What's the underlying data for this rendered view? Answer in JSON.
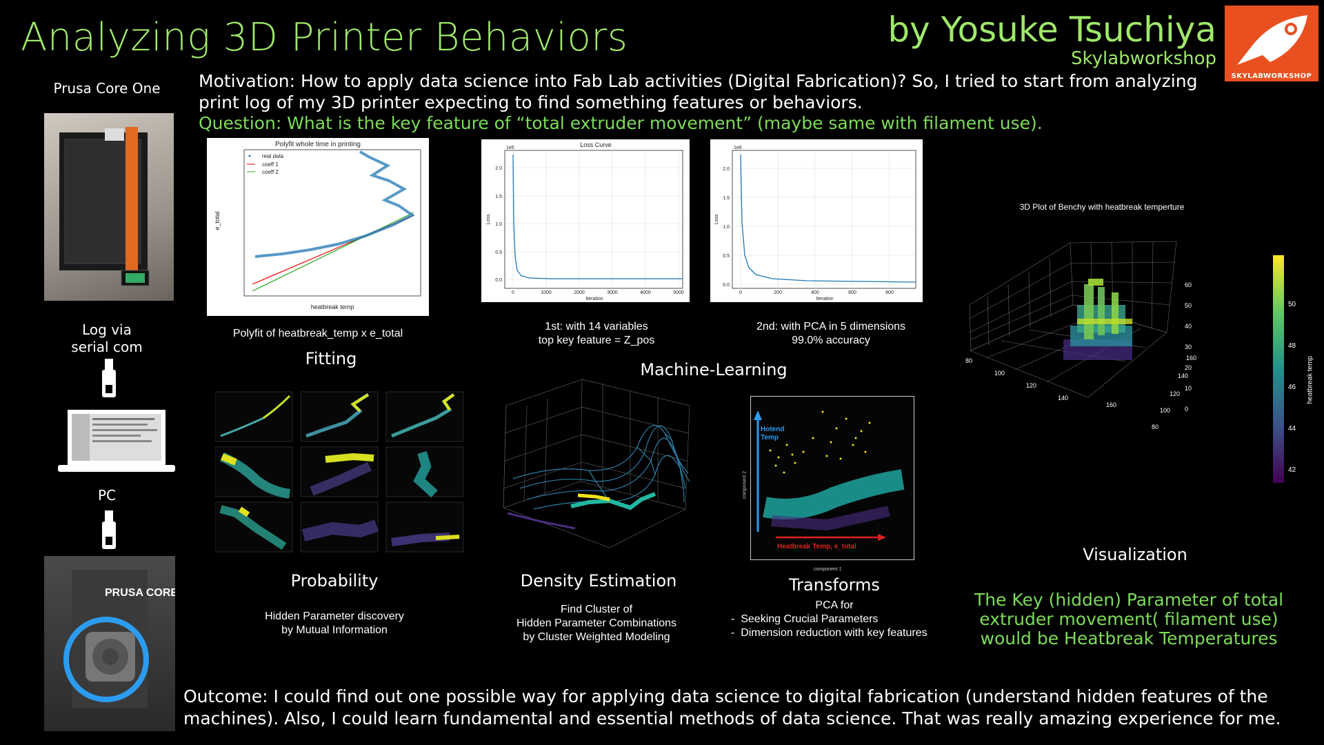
{
  "header": {
    "title": "Analyzing 3D Printer Behaviors",
    "author": "by Yosuke Tsuchiya",
    "organization": "Skylabworkshop",
    "logo_text": "SKYLABWORKSHOP"
  },
  "motivation": "Motivation: How to apply data science into Fab Lab activities (Digital Fabrication)? So, I tried to start from analyzing print log of my 3D printer expecting to find something features or behaviors.",
  "question": "Question: What is the key feature of “total extruder movement” (maybe same with filament use).",
  "sidebar": {
    "printer_label": "Prusa Core One",
    "log_label": "Log via\nserial com",
    "pc_label": "PC",
    "printer_head_text": "PRUSA CORE One"
  },
  "fitting": {
    "plot_title": "Polyfit whole time in printing",
    "legend": [
      "real data",
      "coeff 1",
      "coeff 2"
    ],
    "xlabel": "heatbreak temp",
    "ylabel": "e_total",
    "caption": "Polyfit of heatbreak_temp x e_total",
    "section": "Fitting"
  },
  "ml": {
    "section": "Machine-Learning",
    "loss1": {
      "title": "Loss Curve",
      "scale": "1e6",
      "yticks": [
        "0.0",
        "0.5",
        "1.0",
        "1.5",
        "2.0"
      ],
      "xticks": [
        "0",
        "1000",
        "2000",
        "3000",
        "4000",
        "5000"
      ],
      "xlabel": "Iteration",
      "ylabel": "Loss",
      "caption": "1st: with 14 variables\ntop key feature = Z_pos"
    },
    "loss2": {
      "scale": "1e6",
      "yticks": [
        "0.0",
        "0.5",
        "1.0",
        "1.5",
        "2.0"
      ],
      "xticks": [
        "0",
        "200",
        "400",
        "600",
        "800"
      ],
      "xlabel": "Iteration",
      "ylabel": "Loss",
      "caption": "2nd: with PCA in 5 dimensions\n99.0% accuracy"
    }
  },
  "probability": {
    "section": "Probability",
    "caption": "Hidden Parameter discovery\nby Mutual Information"
  },
  "density": {
    "section": "Density Estimation",
    "caption": "Find Cluster of\nHidden Parameter Combinations\nby Cluster Weighted Modeling"
  },
  "transforms": {
    "section": "Transforms",
    "y_arrow_label": "Hotend\nTemp",
    "x_arrow_label": "Heatbreak Temp, e_total",
    "xlabel": "component 1",
    "ylabel": "component 2",
    "caption_title": "PCA for",
    "caption_items": [
      "Seeking Crucial Parameters",
      "Dimension reduction with key features"
    ]
  },
  "visualization": {
    "plot_title": "3D Plot of Benchy with heatbreak temperture",
    "section": "Visualization",
    "colorbar_label": "heatbreak temp",
    "colorbar_ticks": [
      "50",
      "48",
      "46",
      "44",
      "42"
    ],
    "z_ticks": [
      "60",
      "50",
      "40",
      "30",
      "20",
      "10",
      "0"
    ],
    "x_ticks": [
      "80",
      "100",
      "120",
      "140",
      "160"
    ],
    "y_ticks": [
      "160",
      "140",
      "120",
      "100",
      "80"
    ]
  },
  "conclusion": "The Key (hidden) Parameter of total extruder movement( filament use) would be Heatbreak Temperatures",
  "outcome": "Outcome: I could find out one possible way for applying data science to digital fabrication (understand hidden features of the machines). Also, I could learn fundamental and essential methods of data science. That was really amazing experience for me.",
  "colors": {
    "accent_green": "#9fe86a",
    "question_green": "#7ddc5a",
    "logo_orange": "#e8511f",
    "highlight_blue": "#2c9cf0"
  }
}
